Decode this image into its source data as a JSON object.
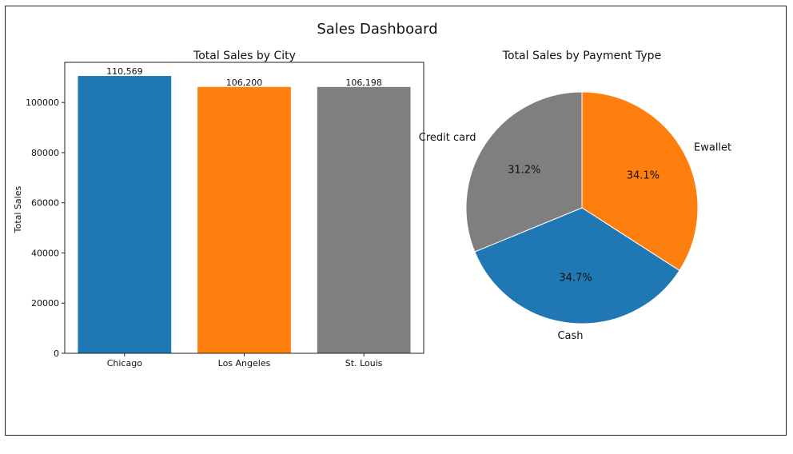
{
  "dashboard": {
    "title": "Sales Dashboard"
  },
  "chart_data": [
    {
      "type": "bar",
      "title": "Total Sales by City",
      "xlabel": "",
      "ylabel": "Total Sales",
      "categories": [
        "Chicago",
        "Los Angeles",
        "St. Louis"
      ],
      "values": [
        110569,
        106200,
        106198
      ],
      "value_labels": [
        "110,569",
        "106,200",
        "106,198"
      ],
      "colors": [
        "#1f77b4",
        "#ff7f0e",
        "#7f7f7f"
      ],
      "ylim": [
        0,
        116000
      ],
      "yticks": [
        0,
        20000,
        40000,
        60000,
        80000,
        100000
      ],
      "ytick_labels": [
        "0",
        "20000",
        "40000",
        "60000",
        "80000",
        "100000"
      ],
      "grid": false,
      "legend": "none"
    },
    {
      "type": "pie",
      "title": "Total Sales by Payment Type",
      "labels": [
        "Ewallet",
        "Cash",
        "Credit card"
      ],
      "values": [
        34.1,
        34.7,
        31.2
      ],
      "pct_labels": [
        "34.1%",
        "34.7%",
        "31.2%"
      ],
      "colors": [
        "#ff7f0e",
        "#1f77b4",
        "#7f7f7f"
      ],
      "start_angle_deg": 90,
      "direction": "clockwise",
      "legend": "none"
    }
  ]
}
